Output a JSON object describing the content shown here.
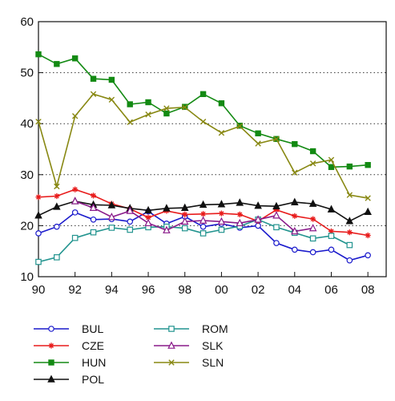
{
  "chart_data": {
    "type": "line",
    "title": "",
    "xlabel": "",
    "ylabel": "",
    "x": [
      1990,
      1991,
      1992,
      1993,
      1994,
      1995,
      1996,
      1997,
      1998,
      1999,
      2000,
      2001,
      2002,
      2003,
      2004,
      2005,
      2006,
      2007,
      2008
    ],
    "xlim": [
      1990,
      2009
    ],
    "ylim": [
      10,
      60
    ],
    "x_ticks": [
      1990,
      1992,
      1994,
      1996,
      1998,
      2000,
      2002,
      2004,
      2006,
      2008
    ],
    "x_tick_labels": [
      "90",
      "92",
      "94",
      "96",
      "98",
      "00",
      "02",
      "04",
      "06",
      "08"
    ],
    "y_ticks": [
      10,
      20,
      30,
      40,
      50,
      60
    ],
    "y_tick_labels": [
      "10",
      "20",
      "30",
      "40",
      "50",
      "60"
    ],
    "grid": "horizontal dotted",
    "legend_position": "bottom",
    "series": [
      {
        "name": "BUL",
        "color": "#1a1acc",
        "marker": "circle",
        "values": [
          18.5,
          19.8,
          22.6,
          21.2,
          21.3,
          20.8,
          22.8,
          20.4,
          21.8,
          19.8,
          20.4,
          19.6,
          20.0,
          16.6,
          15.3,
          14.8,
          15.3,
          13.2,
          14.2
        ]
      },
      {
        "name": "CZE",
        "color": "#e81c1c",
        "marker": "asterisk",
        "values": [
          25.6,
          25.8,
          27.1,
          25.9,
          24.3,
          23.3,
          21.6,
          22.9,
          22.2,
          22.3,
          22.4,
          22.2,
          20.9,
          23.1,
          21.9,
          21.3,
          18.9,
          18.7,
          18.1
        ]
      },
      {
        "name": "HUN",
        "color": "#138a13",
        "marker": "square",
        "values": [
          53.6,
          51.7,
          52.8,
          48.8,
          48.6,
          43.8,
          44.2,
          42.0,
          43.3,
          45.8,
          44.0,
          39.6,
          38.1,
          37.0,
          36.0,
          34.6,
          31.5,
          31.6,
          31.9
        ]
      },
      {
        "name": "POL",
        "color": "#111111",
        "marker": "triangle",
        "values": [
          22.0,
          23.7,
          24.8,
          24.1,
          24.0,
          23.4,
          23.0,
          23.4,
          23.5,
          24.1,
          24.2,
          24.5,
          23.9,
          23.8,
          24.6,
          24.3,
          23.2,
          20.9,
          22.7
        ]
      },
      {
        "name": "ROM",
        "color": "#22948f",
        "marker": "square-open",
        "values": [
          12.9,
          13.8,
          17.6,
          18.7,
          19.6,
          19.2,
          19.7,
          19.8,
          19.5,
          18.5,
          19.2,
          19.9,
          21.2,
          19.7,
          18.6,
          17.5,
          18.0,
          16.2,
          null
        ]
      },
      {
        "name": "SLK",
        "color": "#8a1a8a",
        "marker": "triangle-open",
        "values": [
          null,
          null,
          24.8,
          23.5,
          21.7,
          22.9,
          20.5,
          19.1,
          20.8,
          21.0,
          20.8,
          20.5,
          21.2,
          22.0,
          18.9,
          19.5,
          null,
          null,
          null
        ]
      },
      {
        "name": "SLN",
        "color": "#888812",
        "marker": "x",
        "values": [
          40.4,
          27.7,
          41.5,
          45.8,
          44.7,
          40.3,
          41.8,
          43.0,
          43.2,
          40.4,
          38.2,
          39.5,
          36.1,
          37.0,
          30.4,
          32.2,
          32.9,
          26.0,
          25.4
        ]
      }
    ]
  }
}
